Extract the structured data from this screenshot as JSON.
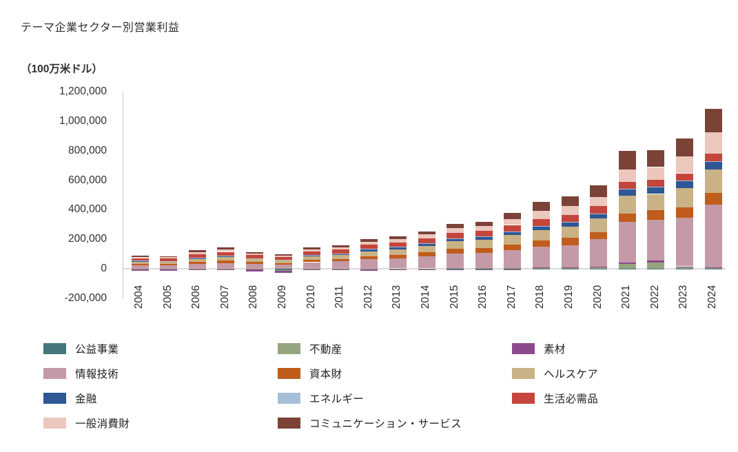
{
  "title": "テーマ企業セクター別営業利益",
  "unit_label": "（100万米ドル）",
  "chart_data": {
    "type": "bar",
    "stacked": true,
    "title": "テーマ企業セクター別営業利益",
    "ylabel": "（100万米ドル）",
    "xlabel": "",
    "grid": false,
    "legend_position": "bottom",
    "ylim": [
      -200000,
      1200000
    ],
    "yticks": [
      {
        "value": 1200000,
        "label": "1,200,000"
      },
      {
        "value": 1000000,
        "label": "1,000,000"
      },
      {
        "value": 800000,
        "label": "800,000"
      },
      {
        "value": 600000,
        "label": "600,000"
      },
      {
        "value": 400000,
        "label": "400,000"
      },
      {
        "value": 200000,
        "label": "200,000"
      },
      {
        "value": 0,
        "label": "0"
      },
      {
        "value": -200000,
        "label": "-200,000"
      }
    ],
    "categories": [
      "2004",
      "2005",
      "2006",
      "2007",
      "2008",
      "2009",
      "2010",
      "2011",
      "2012",
      "2013",
      "2014",
      "2015",
      "2016",
      "2017",
      "2018",
      "2019",
      "2020",
      "2021",
      "2022",
      "2023",
      "2024"
    ],
    "series": [
      {
        "name": "公益事業",
        "color": "#45767A",
        "values": [
          -4000,
          -4000,
          -3000,
          -3000,
          -6000,
          -8000,
          -3000,
          -3000,
          -4000,
          -3000,
          -3000,
          -2000,
          -3000,
          -2000,
          -2000,
          -2000,
          -2000,
          2000,
          2000,
          2000,
          2000
        ]
      },
      {
        "name": "不動産",
        "color": "#95A67E",
        "values": [
          1000,
          1000,
          1000,
          2000,
          1000,
          -5000,
          2000,
          2000,
          2000,
          3000,
          3000,
          4000,
          4000,
          5000,
          6000,
          8000,
          12000,
          30000,
          42000,
          10000,
          6000
        ]
      },
      {
        "name": "素材",
        "color": "#8A4A8C",
        "values": [
          -10000,
          -8000,
          -5000,
          -5000,
          -12000,
          -14000,
          -5000,
          -6000,
          -7000,
          -6000,
          -4000,
          -3000,
          -4000,
          -2000,
          2000,
          3000,
          4000,
          11000,
          12000,
          5000,
          4000
        ]
      },
      {
        "name": "情報技術",
        "color": "#C49AA8",
        "values": [
          23000,
          22000,
          33000,
          38000,
          31000,
          27000,
          43000,
          48000,
          62000,
          68000,
          80000,
          98000,
          103000,
          122000,
          140000,
          150000,
          185000,
          275000,
          278000,
          330000,
          423000
        ]
      },
      {
        "name": "資本財",
        "color": "#C05C1C",
        "values": [
          11000,
          10000,
          14000,
          17000,
          14000,
          11000,
          16000,
          18000,
          22000,
          24000,
          28000,
          32000,
          34000,
          38000,
          46000,
          48000,
          48000,
          54000,
          62000,
          68000,
          79000
        ]
      },
      {
        "name": "ヘルスケア",
        "color": "#C9B285",
        "values": [
          13000,
          13000,
          18000,
          21000,
          18000,
          17000,
          23000,
          25000,
          32000,
          36000,
          43000,
          52000,
          55000,
          64000,
          70000,
          78000,
          92000,
          125000,
          111000,
          130000,
          158000
        ]
      },
      {
        "name": "金融",
        "color": "#2F5796",
        "values": [
          6000,
          6000,
          9000,
          10000,
          7000,
          6000,
          9000,
          10000,
          13000,
          14000,
          16000,
          18000,
          19000,
          22000,
          23000,
          26000,
          28000,
          40000,
          43000,
          48000,
          51000
        ]
      },
      {
        "name": "エネルギー",
        "color": "#A7BED8",
        "values": [
          1000,
          1000,
          2000,
          2000,
          2000,
          1000,
          2000,
          2000,
          3000,
          3000,
          3000,
          3000,
          3000,
          4000,
          4000,
          5000,
          3000,
          5000,
          8000,
          6000,
          6000
        ]
      },
      {
        "name": "生活必需品",
        "color": "#C4453C",
        "values": [
          18000,
          17000,
          22000,
          25000,
          21000,
          19000,
          24000,
          26000,
          30000,
          32000,
          35000,
          38000,
          39000,
          42000,
          46000,
          48000,
          52000,
          46000,
          46000,
          48000,
          51000
        ]
      },
      {
        "name": "一般消費財",
        "color": "#EBC7BD",
        "values": [
          8000,
          8000,
          13000,
          15000,
          11000,
          9000,
          13000,
          15000,
          19000,
          21000,
          25000,
          30000,
          32000,
          40000,
          54000,
          58000,
          64000,
          85000,
          85000,
          115000,
          145000
        ]
      },
      {
        "name": "コミュニケーション・サービス",
        "color": "#7B4238",
        "values": [
          8000,
          7000,
          13000,
          15000,
          10000,
          9000,
          13000,
          14000,
          17000,
          19000,
          22000,
          28000,
          30000,
          42000,
          62000,
          68000,
          78000,
          128000,
          116000,
          123000,
          160000
        ]
      }
    ]
  }
}
